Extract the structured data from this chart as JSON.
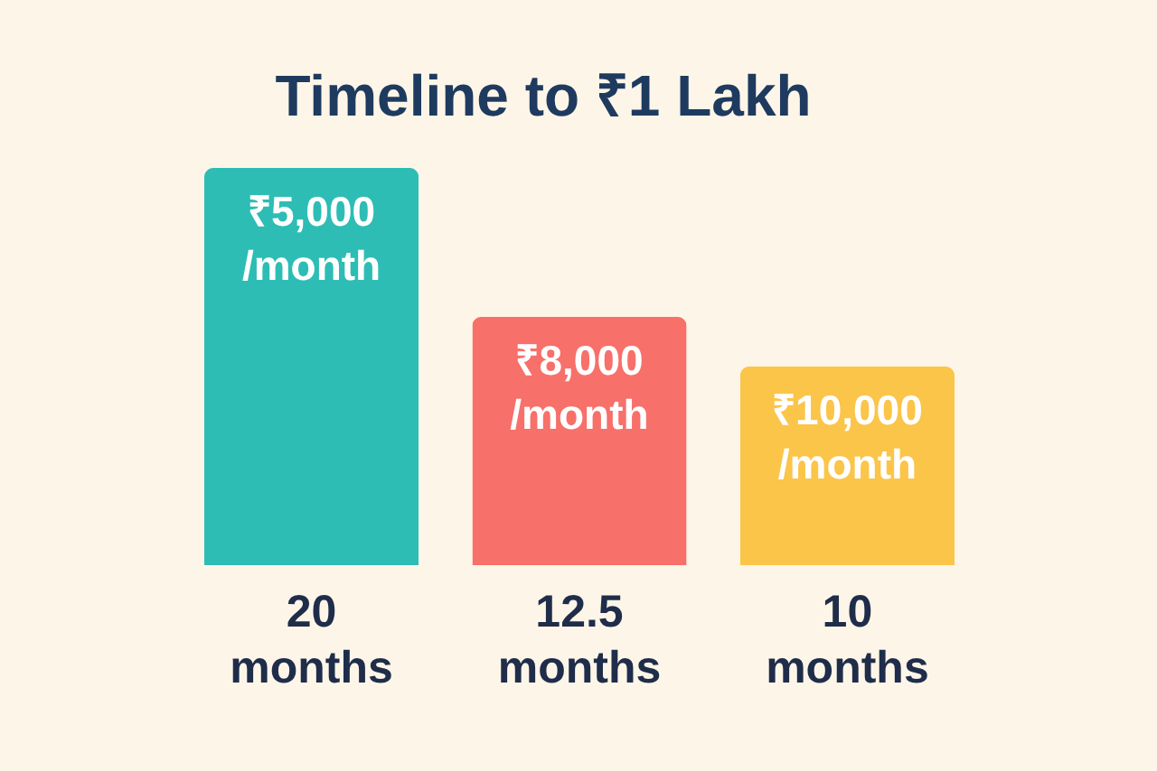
{
  "chart_data": {
    "type": "bar",
    "title": "Timeline to ₹1 Lakh",
    "categories": [
      "₹5,000 /month",
      "₹8,000 /month",
      "₹10,000 /month"
    ],
    "values": [
      20,
      12.5,
      10
    ],
    "colors": [
      "#2dbdb5",
      "#f7706a",
      "#fbc54a"
    ],
    "value_labels": [
      "20 months",
      "12.5 months",
      "10 months"
    ]
  }
}
